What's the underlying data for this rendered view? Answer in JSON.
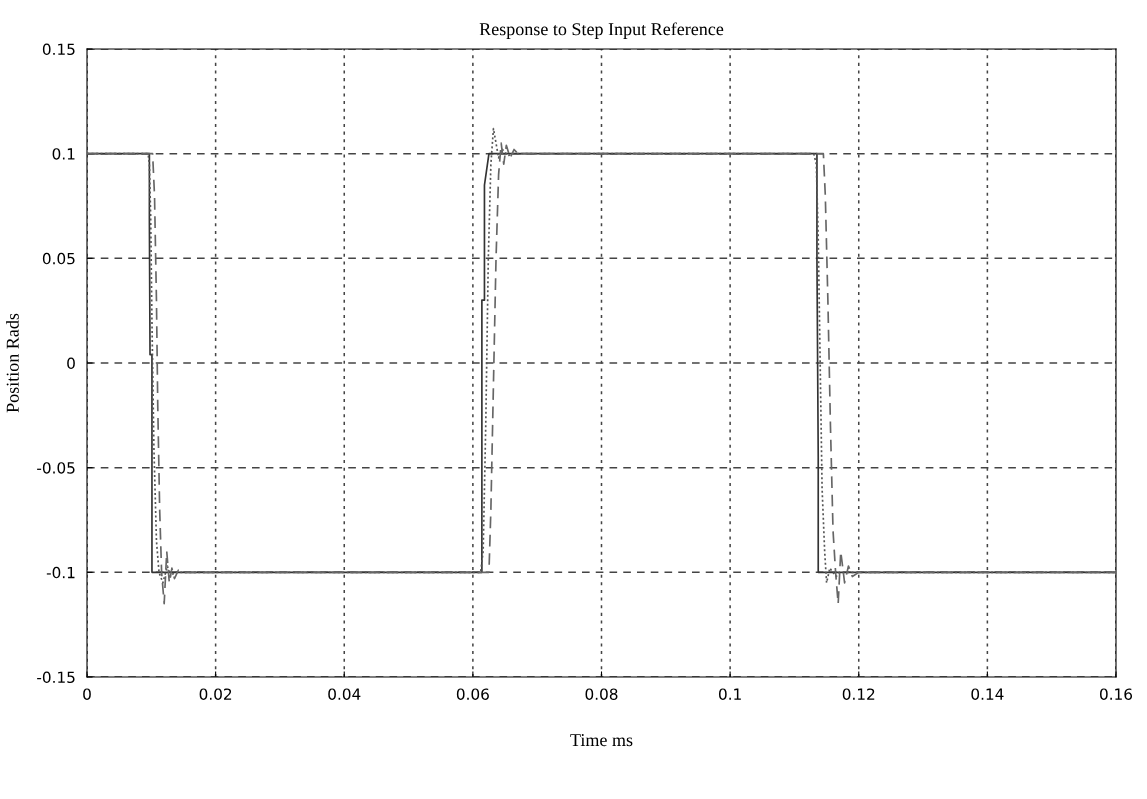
{
  "chart_data": {
    "type": "line",
    "title": "Response to Step Input Reference",
    "xlabel": "Time ms",
    "ylabel": "Position Rads",
    "xlim": [
      0,
      0.16
    ],
    "xticks": [
      0,
      0.02,
      0.04,
      0.06,
      0.08,
      0.1,
      0.12,
      0.14,
      0.16
    ],
    "ylim": [
      -0.15,
      0.15
    ],
    "yticks": [
      -0.15,
      -0.1,
      -0.05,
      0,
      0.05,
      0.1,
      0.15
    ],
    "grid": true,
    "legend": false,
    "marker": "none",
    "series": [
      {
        "color": "#333333",
        "line_style": "solid",
        "x": [
          0,
          0.0097,
          0.0097,
          0.0098,
          0.0101,
          0.0101,
          0.0614,
          0.0614,
          0.0618,
          0.0618,
          0.0625,
          0.1135,
          0.1135,
          0.1137,
          0.1137,
          0.16
        ],
        "values": [
          0.1,
          0.1,
          0.068,
          0.004,
          0.004,
          -0.1,
          -0.1,
          0.03,
          0.03,
          0.085,
          0.1,
          0.1,
          0.05,
          -0.045,
          -0.1,
          -0.1
        ]
      },
      {
        "color": "#555555",
        "line_style": "dotted",
        "x": [
          0,
          0.0095,
          0.0097,
          0.0099,
          0.0101,
          0.0104,
          0.0108,
          0.0112,
          0.0118,
          0.0125,
          0.013,
          0.0136,
          0.016,
          0.0612,
          0.0616,
          0.062,
          0.0624,
          0.0628,
          0.0632,
          0.0636,
          0.064,
          0.0646,
          0.0655,
          0.066,
          0.113,
          0.1134,
          0.1137,
          0.114,
          0.1143,
          0.1147,
          0.115,
          0.1155,
          0.1165,
          0.117,
          0.16
        ],
        "values": [
          0.1,
          0.1,
          0.095,
          0.07,
          0.02,
          -0.04,
          -0.085,
          -0.1,
          -0.105,
          -0.097,
          -0.102,
          -0.1,
          -0.1,
          -0.1,
          -0.09,
          -0.03,
          0.05,
          0.095,
          0.112,
          0.105,
          0.098,
          0.102,
          0.099,
          0.1,
          0.1,
          0.095,
          0.06,
          0.0,
          -0.06,
          -0.09,
          -0.105,
          -0.098,
          -0.102,
          -0.1,
          -0.1
        ]
      },
      {
        "color": "#666666",
        "line_style": "dashed",
        "x": [
          0,
          0.0102,
          0.0105,
          0.0108,
          0.011,
          0.0113,
          0.0116,
          0.012,
          0.0124,
          0.0128,
          0.0132,
          0.0136,
          0.0142,
          0.0148,
          0.016,
          0.0625,
          0.0628,
          0.0632,
          0.0636,
          0.064,
          0.0644,
          0.0648,
          0.0652,
          0.0658,
          0.0664,
          0.067,
          0.068,
          0.1145,
          0.1148,
          0.1152,
          0.1156,
          0.116,
          0.1164,
          0.1168,
          0.1172,
          0.1178,
          0.1184,
          0.119,
          0.12,
          0.16
        ],
        "values": [
          0.1,
          0.1,
          0.08,
          0.03,
          -0.02,
          -0.07,
          -0.1,
          -0.115,
          -0.09,
          -0.105,
          -0.098,
          -0.103,
          -0.099,
          -0.1,
          -0.1,
          -0.1,
          -0.07,
          -0.01,
          0.05,
          0.09,
          0.105,
          0.095,
          0.104,
          0.098,
          0.102,
          0.1,
          0.1,
          0.1,
          0.08,
          0.03,
          -0.03,
          -0.08,
          -0.1,
          -0.115,
          -0.09,
          -0.105,
          -0.097,
          -0.102,
          -0.1,
          -0.1
        ]
      }
    ]
  }
}
